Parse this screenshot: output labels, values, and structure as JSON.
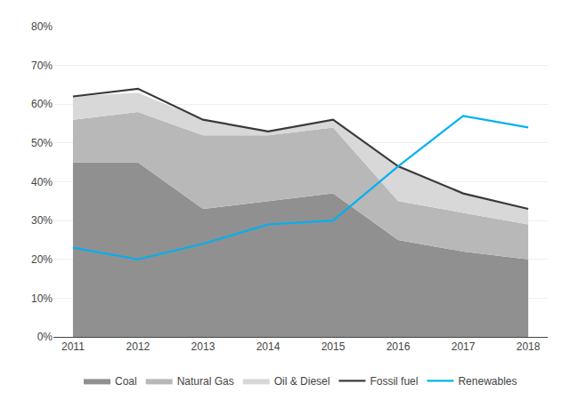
{
  "chart_data": {
    "type": "area",
    "stacked": true,
    "x": [
      2011,
      2012,
      2013,
      2014,
      2015,
      2016,
      2017,
      2018
    ],
    "series": [
      {
        "name": "Coal",
        "type": "area",
        "color": "#909090",
        "values": [
          0.45,
          0.45,
          0.33,
          0.35,
          0.37,
          0.25,
          0.22,
          0.2
        ]
      },
      {
        "name": "Natural Gas",
        "type": "area",
        "color": "#b8b8b8",
        "values": [
          0.11,
          0.13,
          0.19,
          0.17,
          0.17,
          0.1,
          0.1,
          0.09
        ]
      },
      {
        "name": "Oil & Diesel",
        "type": "area",
        "color": "#d8d8d8",
        "values": [
          0.06,
          0.05,
          0.04,
          0.01,
          0.02,
          0.09,
          0.05,
          0.04
        ]
      },
      {
        "name": "Fossil fuel",
        "type": "line",
        "color": "#3a3a3a",
        "values": [
          0.62,
          0.64,
          0.56,
          0.53,
          0.56,
          0.44,
          0.37,
          0.33
        ]
      },
      {
        "name": "Renewables",
        "type": "line",
        "color": "#00b0f0",
        "values": [
          0.23,
          0.2,
          0.24,
          0.29,
          0.3,
          0.44,
          0.57,
          0.54
        ]
      }
    ],
    "xlim": [
      2010.7,
      2018.3
    ],
    "xticks": [
      2011,
      2012,
      2013,
      2014,
      2015,
      2016,
      2017,
      2018
    ],
    "ylim": [
      0.0,
      0.8
    ],
    "yticks": [
      {
        "value": 0.0,
        "label": "0%"
      },
      {
        "value": 0.1,
        "label": "10%"
      },
      {
        "value": 0.2,
        "label": "20%"
      },
      {
        "value": 0.3,
        "label": "30%"
      },
      {
        "value": 0.4,
        "label": "40%"
      },
      {
        "value": 0.5,
        "label": "50%"
      },
      {
        "value": 0.6,
        "label": "60%"
      },
      {
        "value": 0.7,
        "label": "70%"
      },
      {
        "value": 0.8,
        "label": "80%"
      }
    ],
    "grid": true,
    "legend": "bottom"
  }
}
